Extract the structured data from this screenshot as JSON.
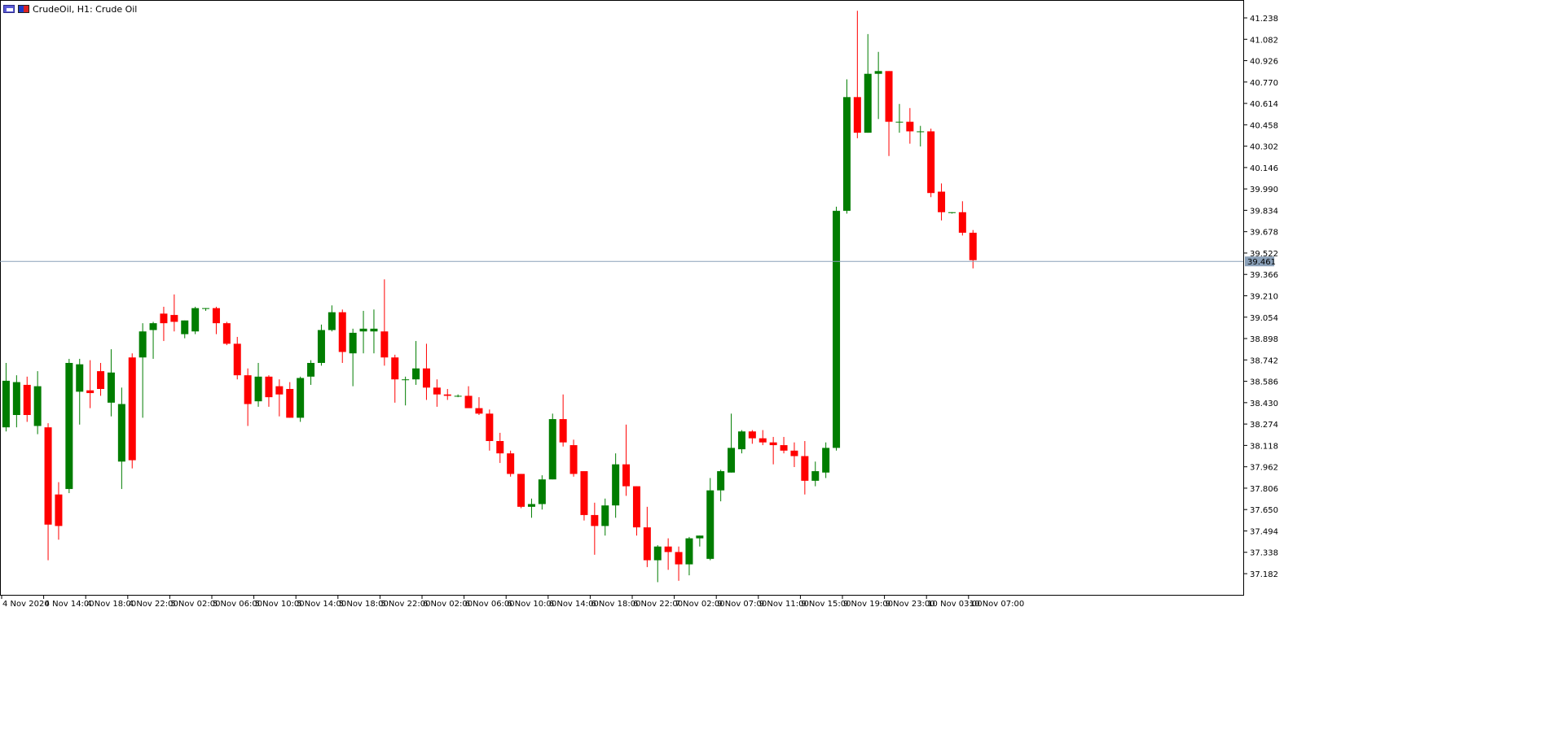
{
  "window": {
    "title": "CrudeOil, H1:  Crude Oil",
    "icons": [
      "chart-window-icon",
      "chart-type-icon"
    ]
  },
  "colors": {
    "bull": "#007d00",
    "bear": "#ff0000",
    "bid_line": "#8aa0b8",
    "bid_label_bg": "#8aa0b8",
    "axis": "#000000",
    "background": "#ffffff"
  },
  "price_axis": {
    "ticks": [
      "41.238",
      "41.082",
      "40.926",
      "40.770",
      "40.614",
      "40.458",
      "40.302",
      "40.146",
      "39.990",
      "39.834",
      "39.678",
      "39.522",
      "39.366",
      "39.210",
      "39.054",
      "38.898",
      "38.742",
      "38.586",
      "38.430",
      "38.274",
      "38.118",
      "37.962",
      "37.806",
      "37.650",
      "37.494",
      "37.338",
      "37.182"
    ],
    "bid_label": "39.461"
  },
  "time_axis": {
    "labels": [
      "4 Nov 2020",
      "4 Nov 14:00",
      "4 Nov 18:00",
      "4 Nov 22:00",
      "5 Nov 02:00",
      "5 Nov 06:00",
      "5 Nov 10:00",
      "5 Nov 14:00",
      "5 Nov 18:00",
      "5 Nov 22:00",
      "6 Nov 02:00",
      "6 Nov 06:00",
      "6 Nov 10:00",
      "6 Nov 14:00",
      "6 Nov 18:00",
      "6 Nov 22:00",
      "7 Nov 02:00",
      "9 Nov 07:00",
      "9 Nov 11:00",
      "9 Nov 15:00",
      "9 Nov 19:00",
      "9 Nov 23:00",
      "10 Nov 03:00",
      "10 Nov 07:00"
    ]
  },
  "chart_data": {
    "type": "candlestick",
    "symbol": "CrudeOil",
    "timeframe": "H1",
    "ylim": [
      37.09,
      41.32
    ],
    "bid": 39.461,
    "grid": false,
    "candles": [
      {
        "o": 38.25,
        "h": 38.72,
        "l": 38.22,
        "c": 38.59
      },
      {
        "o": 38.34,
        "h": 38.63,
        "l": 38.25,
        "c": 38.58
      },
      {
        "o": 38.56,
        "h": 38.62,
        "l": 38.29,
        "c": 38.34
      },
      {
        "o": 38.26,
        "h": 38.66,
        "l": 38.2,
        "c": 38.55
      },
      {
        "o": 38.25,
        "h": 38.28,
        "l": 37.28,
        "c": 37.54
      },
      {
        "o": 37.76,
        "h": 37.85,
        "l": 37.43,
        "c": 37.53
      },
      {
        "o": 37.8,
        "h": 38.75,
        "l": 37.77,
        "c": 38.72
      },
      {
        "o": 38.51,
        "h": 38.75,
        "l": 38.27,
        "c": 38.71
      },
      {
        "o": 38.52,
        "h": 38.74,
        "l": 38.39,
        "c": 38.5
      },
      {
        "o": 38.66,
        "h": 38.72,
        "l": 38.48,
        "c": 38.53
      },
      {
        "o": 38.43,
        "h": 38.82,
        "l": 38.33,
        "c": 38.65
      },
      {
        "o": 38.0,
        "h": 38.54,
        "l": 37.8,
        "c": 38.42
      },
      {
        "o": 38.76,
        "h": 38.79,
        "l": 37.95,
        "c": 38.01
      },
      {
        "o": 38.76,
        "h": 39.01,
        "l": 38.32,
        "c": 38.95
      },
      {
        "o": 38.96,
        "h": 39.02,
        "l": 38.75,
        "c": 39.01
      },
      {
        "o": 39.08,
        "h": 39.13,
        "l": 38.88,
        "c": 39.01
      },
      {
        "o": 39.07,
        "h": 39.22,
        "l": 38.95,
        "c": 39.02
      },
      {
        "o": 38.93,
        "h": 39.03,
        "l": 38.9,
        "c": 39.03
      },
      {
        "o": 38.95,
        "h": 39.13,
        "l": 38.93,
        "c": 39.12
      },
      {
        "o": 39.12,
        "h": 39.12,
        "l": 39.1,
        "c": 39.12
      },
      {
        "o": 39.12,
        "h": 39.13,
        "l": 38.93,
        "c": 39.01
      },
      {
        "o": 39.01,
        "h": 39.02,
        "l": 38.85,
        "c": 38.86
      },
      {
        "o": 38.86,
        "h": 38.91,
        "l": 38.6,
        "c": 38.63
      },
      {
        "o": 38.63,
        "h": 38.68,
        "l": 38.26,
        "c": 38.42
      },
      {
        "o": 38.44,
        "h": 38.72,
        "l": 38.4,
        "c": 38.62
      },
      {
        "o": 38.62,
        "h": 38.63,
        "l": 38.4,
        "c": 38.47
      },
      {
        "o": 38.55,
        "h": 38.6,
        "l": 38.33,
        "c": 38.49
      },
      {
        "o": 38.53,
        "h": 38.58,
        "l": 38.32,
        "c": 38.32
      },
      {
        "o": 38.32,
        "h": 38.62,
        "l": 38.29,
        "c": 38.61
      },
      {
        "o": 38.62,
        "h": 38.74,
        "l": 38.56,
        "c": 38.72
      },
      {
        "o": 38.72,
        "h": 39.0,
        "l": 38.7,
        "c": 38.96
      },
      {
        "o": 38.96,
        "h": 39.14,
        "l": 38.95,
        "c": 39.09
      },
      {
        "o": 39.09,
        "h": 39.11,
        "l": 38.72,
        "c": 38.8
      },
      {
        "o": 38.79,
        "h": 38.97,
        "l": 38.55,
        "c": 38.94
      },
      {
        "o": 38.95,
        "h": 39.1,
        "l": 38.79,
        "c": 38.97
      },
      {
        "o": 38.95,
        "h": 39.11,
        "l": 38.79,
        "c": 38.97
      },
      {
        "o": 38.95,
        "h": 39.33,
        "l": 38.7,
        "c": 38.76
      },
      {
        "o": 38.76,
        "h": 38.78,
        "l": 38.43,
        "c": 38.6
      },
      {
        "o": 38.6,
        "h": 38.62,
        "l": 38.41,
        "c": 38.6
      },
      {
        "o": 38.6,
        "h": 38.88,
        "l": 38.56,
        "c": 38.68
      },
      {
        "o": 38.68,
        "h": 38.86,
        "l": 38.45,
        "c": 38.54
      },
      {
        "o": 38.54,
        "h": 38.6,
        "l": 38.4,
        "c": 38.49
      },
      {
        "o": 38.49,
        "h": 38.53,
        "l": 38.45,
        "c": 38.48
      },
      {
        "o": 38.48,
        "h": 38.49,
        "l": 38.47,
        "c": 38.48
      },
      {
        "o": 38.48,
        "h": 38.55,
        "l": 38.42,
        "c": 38.39
      },
      {
        "o": 38.39,
        "h": 38.47,
        "l": 38.34,
        "c": 38.35
      },
      {
        "o": 38.35,
        "h": 38.38,
        "l": 38.08,
        "c": 38.15
      },
      {
        "o": 38.15,
        "h": 38.21,
        "l": 37.99,
        "c": 38.06
      },
      {
        "o": 38.06,
        "h": 38.08,
        "l": 37.89,
        "c": 37.91
      },
      {
        "o": 37.91,
        "h": 37.91,
        "l": 37.66,
        "c": 37.67
      },
      {
        "o": 37.67,
        "h": 37.73,
        "l": 37.59,
        "c": 37.69
      },
      {
        "o": 37.69,
        "h": 37.9,
        "l": 37.65,
        "c": 37.87
      },
      {
        "o": 37.87,
        "h": 38.35,
        "l": 37.87,
        "c": 38.31
      },
      {
        "o": 38.31,
        "h": 38.49,
        "l": 38.11,
        "c": 38.14
      },
      {
        "o": 38.12,
        "h": 38.16,
        "l": 37.89,
        "c": 37.91
      },
      {
        "o": 37.93,
        "h": 37.93,
        "l": 37.57,
        "c": 37.61
      },
      {
        "o": 37.61,
        "h": 37.7,
        "l": 37.32,
        "c": 37.53
      },
      {
        "o": 37.53,
        "h": 37.73,
        "l": 37.46,
        "c": 37.68
      },
      {
        "o": 37.68,
        "h": 38.06,
        "l": 37.59,
        "c": 37.98
      },
      {
        "o": 37.98,
        "h": 38.27,
        "l": 37.75,
        "c": 37.82
      },
      {
        "o": 37.82,
        "h": 37.82,
        "l": 37.46,
        "c": 37.52
      },
      {
        "o": 37.52,
        "h": 37.67,
        "l": 37.23,
        "c": 37.28
      },
      {
        "o": 37.28,
        "h": 37.39,
        "l": 37.12,
        "c": 37.38
      },
      {
        "o": 37.38,
        "h": 37.44,
        "l": 37.21,
        "c": 37.34
      },
      {
        "o": 37.34,
        "h": 37.38,
        "l": 37.13,
        "c": 37.25
      },
      {
        "o": 37.25,
        "h": 37.45,
        "l": 37.17,
        "c": 37.44
      },
      {
        "o": 37.44,
        "h": 37.46,
        "l": 37.38,
        "c": 37.46
      },
      {
        "o": 37.29,
        "h": 37.88,
        "l": 37.28,
        "c": 37.79
      },
      {
        "o": 37.79,
        "h": 37.94,
        "l": 37.71,
        "c": 37.93
      },
      {
        "o": 37.92,
        "h": 38.35,
        "l": 37.92,
        "c": 38.1
      },
      {
        "o": 38.09,
        "h": 38.23,
        "l": 38.06,
        "c": 38.22
      },
      {
        "o": 38.22,
        "h": 38.23,
        "l": 38.13,
        "c": 38.17
      },
      {
        "o": 38.17,
        "h": 38.23,
        "l": 38.12,
        "c": 38.14
      },
      {
        "o": 38.14,
        "h": 38.18,
        "l": 37.98,
        "c": 38.12
      },
      {
        "o": 38.12,
        "h": 38.18,
        "l": 38.06,
        "c": 38.08
      },
      {
        "o": 38.08,
        "h": 38.14,
        "l": 37.96,
        "c": 38.04
      },
      {
        "o": 38.04,
        "h": 38.15,
        "l": 37.76,
        "c": 37.86
      },
      {
        "o": 37.86,
        "h": 38.0,
        "l": 37.82,
        "c": 37.93
      },
      {
        "o": 37.92,
        "h": 38.14,
        "l": 37.88,
        "c": 38.1
      },
      {
        "o": 38.1,
        "h": 39.86,
        "l": 38.08,
        "c": 39.83
      },
      {
        "o": 39.83,
        "h": 40.79,
        "l": 39.81,
        "c": 40.66
      },
      {
        "o": 40.66,
        "h": 41.29,
        "l": 40.36,
        "c": 40.4
      },
      {
        "o": 40.4,
        "h": 41.12,
        "l": 40.4,
        "c": 40.83
      },
      {
        "o": 40.83,
        "h": 40.99,
        "l": 40.5,
        "c": 40.85
      },
      {
        "o": 40.85,
        "h": 40.85,
        "l": 40.23,
        "c": 40.48
      },
      {
        "o": 40.48,
        "h": 40.61,
        "l": 40.4,
        "c": 40.48
      },
      {
        "o": 40.48,
        "h": 40.58,
        "l": 40.32,
        "c": 40.41
      },
      {
        "o": 40.41,
        "h": 40.45,
        "l": 40.3,
        "c": 40.41
      },
      {
        "o": 40.41,
        "h": 40.43,
        "l": 39.93,
        "c": 39.96
      },
      {
        "o": 39.97,
        "h": 40.03,
        "l": 39.76,
        "c": 39.82
      },
      {
        "o": 39.82,
        "h": 39.82,
        "l": 39.81,
        "c": 39.82
      },
      {
        "o": 39.82,
        "h": 39.9,
        "l": 39.65,
        "c": 39.67
      },
      {
        "o": 39.67,
        "h": 39.69,
        "l": 39.41,
        "c": 39.47
      }
    ]
  }
}
